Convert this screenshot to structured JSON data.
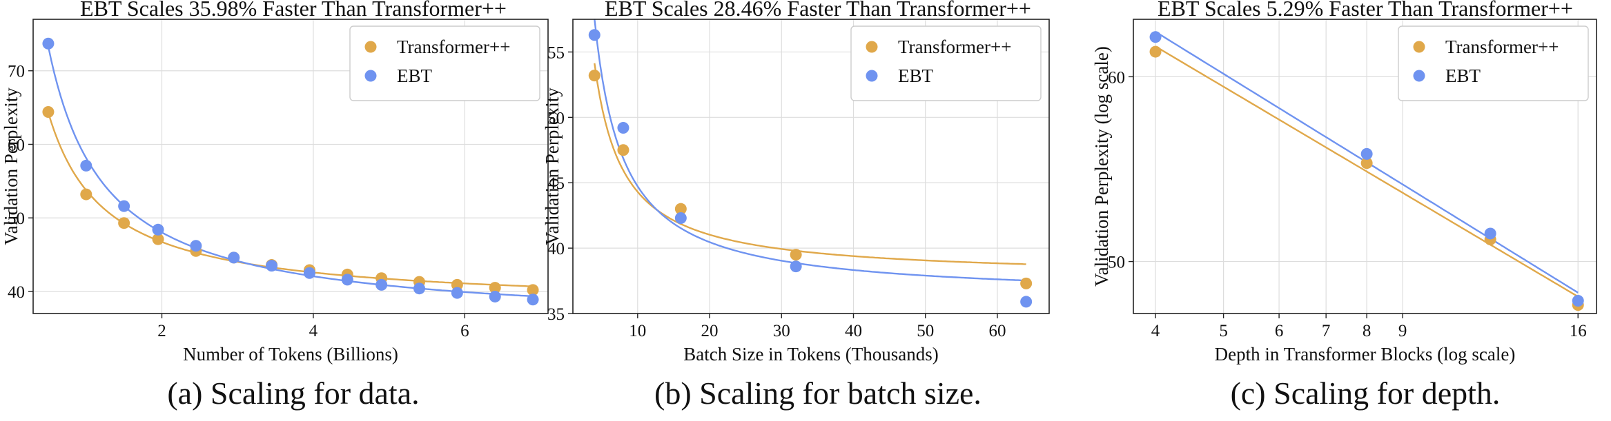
{
  "colors": {
    "transformer": "#E0A84A",
    "ebt": "#6F93F0",
    "grid": "#dddddd",
    "axis": "#222222"
  },
  "chart_data": [
    {
      "type": "scatter",
      "title": "EBT Scales 35.98% Faster Than Transformer++",
      "xlabel": "Number of Tokens (Billions)",
      "ylabel": "Validation Perplexity",
      "caption": "(a) Scaling for data.",
      "xlim": [
        0.3,
        7.1
      ],
      "ylim": [
        37,
        77
      ],
      "x_scale": "linear",
      "y_scale": "linear",
      "xticks": [
        2,
        4,
        6
      ],
      "yticks": [
        40,
        50,
        60,
        70
      ],
      "grid": true,
      "legend": "top-right",
      "fit_lines": true,
      "series": [
        {
          "name": "Transformer++",
          "color": "#E0A84A",
          "x": [
            0.5,
            1.0,
            1.5,
            1.95,
            2.45,
            2.95,
            3.45,
            3.95,
            4.45,
            4.9,
            5.4,
            5.9,
            6.4,
            6.9
          ],
          "y": [
            64.4,
            53.2,
            49.3,
            47.1,
            45.5,
            44.6,
            43.6,
            42.9,
            42.3,
            41.8,
            41.3,
            40.9,
            40.5,
            40.2
          ]
        },
        {
          "name": "EBT",
          "color": "#6F93F0",
          "x": [
            0.5,
            1.0,
            1.5,
            1.95,
            2.45,
            2.95,
            3.45,
            3.95,
            4.45,
            4.9,
            5.4,
            5.9,
            6.4,
            6.9
          ],
          "y": [
            73.7,
            57.1,
            51.6,
            48.4,
            46.2,
            44.6,
            43.5,
            42.5,
            41.6,
            40.9,
            40.4,
            39.8,
            39.3,
            38.9
          ]
        }
      ]
    },
    {
      "type": "scatter",
      "title": "EBT Scales 28.46% Faster Than Transformer++",
      "xlabel": "Batch Size in Tokens (Thousands)",
      "ylabel": "Validation Perplexity",
      "caption": "(b) Scaling for batch size.",
      "xlim": [
        1.0,
        67.2
      ],
      "ylim": [
        35.0,
        57.5
      ],
      "x_scale": "linear",
      "y_scale": "linear",
      "xticks": [
        10,
        20,
        30,
        40,
        50,
        60
      ],
      "yticks": [
        35,
        40,
        45,
        50,
        55
      ],
      "grid": true,
      "legend": "top-right",
      "fit_lines": true,
      "series": [
        {
          "name": "Transformer++",
          "color": "#E0A84A",
          "x": [
            4,
            8,
            16,
            32,
            64
          ],
          "y": [
            53.2,
            47.5,
            43.0,
            39.5,
            37.3
          ]
        },
        {
          "name": "EBT",
          "color": "#6F93F0",
          "x": [
            4,
            8,
            16,
            32,
            64
          ],
          "y": [
            56.3,
            49.2,
            42.3,
            38.6,
            35.9
          ]
        }
      ]
    },
    {
      "type": "scatter",
      "title": "EBT Scales 5.29% Faster Than Transformer++",
      "xlabel": "Depth in Transformer Blocks (log scale)",
      "ylabel": "Validation Perplexity (log scale)",
      "caption": "(c) Scaling for depth.",
      "xlim": [
        3.72,
        17.0
      ],
      "ylim": [
        47.5,
        63.5
      ],
      "x_scale": "log",
      "y_scale": "log",
      "xticks": [
        4,
        5,
        6,
        7,
        8,
        9,
        16
      ],
      "yticks": [
        50,
        60
      ],
      "grid": true,
      "legend": "top-right",
      "fit_lines": true,
      "series": [
        {
          "name": "Transformer++",
          "color": "#E0A84A",
          "x": [
            4,
            8,
            12,
            16
          ],
          "y": [
            61.5,
            55.1,
            51.1,
            47.9
          ]
        },
        {
          "name": "EBT",
          "color": "#6F93F0",
          "x": [
            4,
            8,
            12,
            16
          ],
          "y": [
            62.4,
            55.6,
            51.4,
            48.1
          ]
        }
      ]
    }
  ]
}
